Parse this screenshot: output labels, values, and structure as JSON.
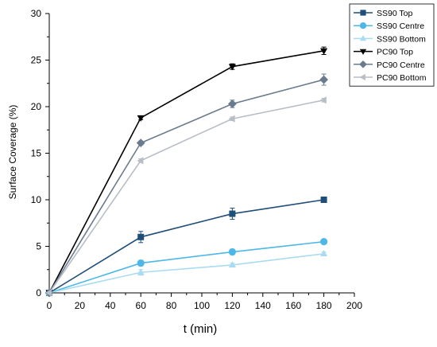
{
  "chart_data": {
    "type": "line",
    "xlabel": "t (min)",
    "ylabel": "Surface Coverage (%)",
    "xlim": [
      0,
      200
    ],
    "ylim": [
      0,
      30
    ],
    "x_ticks": [
      0,
      20,
      40,
      60,
      80,
      100,
      120,
      140,
      160,
      180,
      200
    ],
    "y_ticks": [
      0,
      5,
      10,
      15,
      20,
      25,
      30
    ],
    "grid": false,
    "legend_position": "top-right",
    "x": [
      0,
      60,
      120,
      180
    ],
    "series": [
      {
        "name": "SS90 Top",
        "marker": "square",
        "color": "#1f4e79",
        "values": [
          0,
          6.0,
          8.5,
          10.0
        ],
        "errors": [
          0,
          0.6,
          0.6,
          0.2
        ]
      },
      {
        "name": "SS90 Centre",
        "marker": "circle",
        "color": "#4db8e8",
        "values": [
          0,
          3.2,
          4.4,
          5.5
        ],
        "errors": [
          0,
          0.3,
          0.3,
          0.2
        ]
      },
      {
        "name": "SS90 Bottom",
        "marker": "triangle-up",
        "color": "#a9dcf3",
        "values": [
          0,
          2.2,
          3.0,
          4.2
        ],
        "errors": [
          0,
          0.3,
          0.2,
          0.2
        ]
      },
      {
        "name": "PC90 Top",
        "marker": "triangle-down",
        "color": "#000000",
        "values": [
          0,
          18.8,
          24.3,
          26.0
        ],
        "errors": [
          0,
          0.2,
          0.3,
          0.4
        ]
      },
      {
        "name": "PC90 Centre",
        "marker": "diamond",
        "color": "#6b7b8e",
        "values": [
          0,
          16.1,
          20.3,
          22.9
        ],
        "errors": [
          0,
          0.2,
          0.4,
          0.6
        ]
      },
      {
        "name": "PC90 Bottom",
        "marker": "triangle-left",
        "color": "#b8bec6",
        "values": [
          0,
          14.2,
          18.7,
          20.7
        ],
        "errors": [
          0,
          0.2,
          0.2,
          0.2
        ]
      }
    ]
  }
}
